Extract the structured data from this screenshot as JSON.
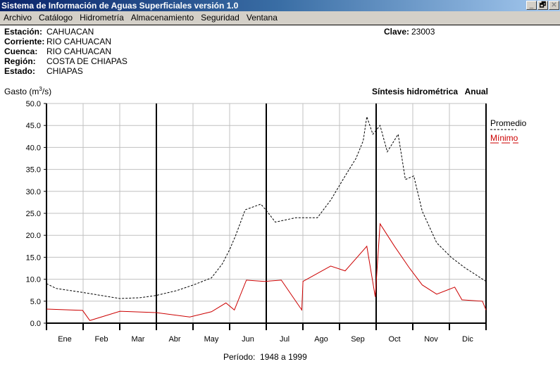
{
  "window": {
    "title": "Sistema de Información de Aguas Superficiales  versión 1.0",
    "buttons": {
      "minimize": "_",
      "restore": "🗗",
      "close": "✕"
    }
  },
  "menu": [
    "Archivo",
    "Catálogo",
    "Hidrometría",
    "Almacenamiento",
    "Seguridad",
    "Ventana"
  ],
  "station": {
    "estacion_label": "Estación:",
    "estacion": "CAHUACAN",
    "corriente_label": "Corriente:",
    "corriente": "RIO CAHUACAN",
    "cuenca_label": "Cuenca:",
    "cuenca": "RIO CAHUACAN",
    "region_label": "Región:",
    "region": "COSTA DE CHIAPAS",
    "estado_label": "Estado:",
    "estado": "CHIAPAS",
    "clave_label": "Clave:",
    "clave": "23003"
  },
  "chart_data": {
    "type": "line",
    "title": "Síntesis hidrométrica   Anual",
    "ylabel": "Gasto (m³/s)",
    "ylabel_base": "Gasto (m",
    "ylabel_sup": "3",
    "ylabel_end": "/s)",
    "xlabel": "Período:  1948 a 1999",
    "ylim": [
      0,
      50
    ],
    "yticks": [
      "0.0",
      "5.0",
      "10.0",
      "15.0",
      "20.0",
      "25.0",
      "30.0",
      "35.0",
      "40.0",
      "45.0",
      "50.0"
    ],
    "xticks": [
      "Ene",
      "Feb",
      "Mar",
      "Abr",
      "May",
      "Jun",
      "Jul",
      "Ago",
      "Sep",
      "Oct",
      "Nov",
      "Dic"
    ],
    "xlim_days": [
      0,
      365
    ],
    "grid": true,
    "legend_position": "right",
    "series": [
      {
        "name": "Promedio",
        "color": "#000000",
        "style": "dashed",
        "x": [
          0,
          8,
          30,
          61,
          78,
          91,
          108,
          122,
          137,
          146,
          152,
          157,
          165,
          178,
          183,
          190,
          207,
          225,
          236,
          248,
          257,
          263,
          266,
          271,
          277,
          283,
          292,
          298,
          305,
          312,
          324,
          336,
          347,
          365
        ],
        "y": [
          9.0,
          7.9,
          7.0,
          5.6,
          5.8,
          6.3,
          7.4,
          8.7,
          10.3,
          13.5,
          16.7,
          19.9,
          25.8,
          27.1,
          25.5,
          23.0,
          24.0,
          24.0,
          28.0,
          33.5,
          37.5,
          41.5,
          47.0,
          43.0,
          45.0,
          39.0,
          43.0,
          32.7,
          33.5,
          25.5,
          18.3,
          15.0,
          12.7,
          9.5
        ]
      },
      {
        "name": "Mínimo",
        "color": "#cc0000",
        "style": "solid",
        "x": [
          0,
          30,
          36,
          61,
          91,
          119,
          137,
          149,
          156,
          166,
          181,
          195,
          212,
          213,
          236,
          248,
          266,
          273,
          277,
          289,
          301,
          312,
          324,
          339,
          345,
          362,
          365
        ],
        "y": [
          3.2,
          2.9,
          0.6,
          2.7,
          2.4,
          1.4,
          2.6,
          4.6,
          3.0,
          9.8,
          9.5,
          9.8,
          3.0,
          9.5,
          13.0,
          11.9,
          17.5,
          6.0,
          22.6,
          17.5,
          12.7,
          8.7,
          6.6,
          8.2,
          5.3,
          5.0,
          3.0
        ]
      }
    ]
  }
}
